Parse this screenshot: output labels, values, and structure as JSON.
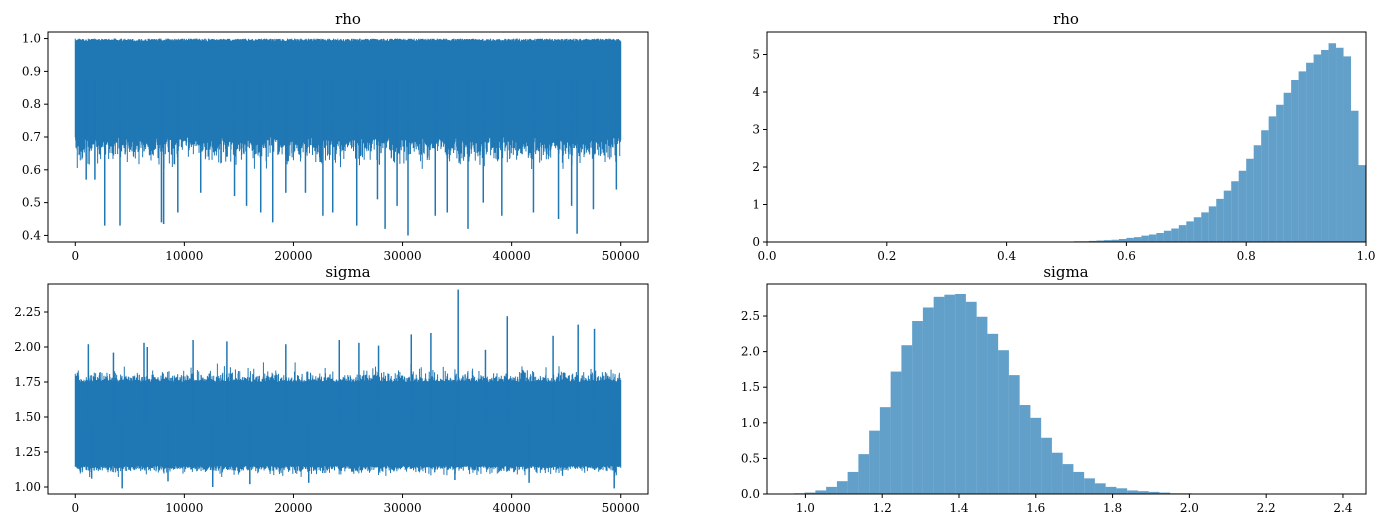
{
  "chart_data": [
    {
      "type": "line",
      "title": "rho",
      "xlabel": "",
      "ylabel": "",
      "xlim": [
        -2500,
        52500
      ],
      "ylim": [
        0.38,
        1.02
      ],
      "xticks": [
        0,
        10000,
        20000,
        30000,
        40000,
        50000
      ],
      "yticks": [
        0.4,
        0.5,
        0.6,
        0.7,
        0.8,
        0.9,
        1.0
      ],
      "ytick_labels": [
        "0.4",
        "0.5",
        "0.6",
        "0.7",
        "0.8",
        "0.9",
        "1.0"
      ],
      "color": "#1f77b4",
      "n_samples": 50000,
      "band": {
        "upper": 1.0,
        "dense_low": 0.7,
        "spike_low": 0.6
      },
      "spikes": [
        {
          "x": 1000,
          "y": 0.57
        },
        {
          "x": 1800,
          "y": 0.57
        },
        {
          "x": 2700,
          "y": 0.43
        },
        {
          "x": 4100,
          "y": 0.43
        },
        {
          "x": 7900,
          "y": 0.44
        },
        {
          "x": 8100,
          "y": 0.435
        },
        {
          "x": 9400,
          "y": 0.47
        },
        {
          "x": 11500,
          "y": 0.53
        },
        {
          "x": 14600,
          "y": 0.52
        },
        {
          "x": 15700,
          "y": 0.49
        },
        {
          "x": 17000,
          "y": 0.47
        },
        {
          "x": 18100,
          "y": 0.44
        },
        {
          "x": 19300,
          "y": 0.53
        },
        {
          "x": 21100,
          "y": 0.53
        },
        {
          "x": 22700,
          "y": 0.46
        },
        {
          "x": 23600,
          "y": 0.47
        },
        {
          "x": 25800,
          "y": 0.43
        },
        {
          "x": 27700,
          "y": 0.51
        },
        {
          "x": 28400,
          "y": 0.42
        },
        {
          "x": 29500,
          "y": 0.49
        },
        {
          "x": 30500,
          "y": 0.4
        },
        {
          "x": 33000,
          "y": 0.46
        },
        {
          "x": 34100,
          "y": 0.47
        },
        {
          "x": 36000,
          "y": 0.42
        },
        {
          "x": 37400,
          "y": 0.5
        },
        {
          "x": 39100,
          "y": 0.46
        },
        {
          "x": 42000,
          "y": 0.47
        },
        {
          "x": 44300,
          "y": 0.45
        },
        {
          "x": 45500,
          "y": 0.49
        },
        {
          "x": 46000,
          "y": 0.405
        },
        {
          "x": 47500,
          "y": 0.48
        },
        {
          "x": 49600,
          "y": 0.54
        }
      ]
    },
    {
      "type": "bar",
      "title": "rho",
      "xlabel": "",
      "ylabel": "",
      "xlim": [
        0.0,
        1.0
      ],
      "ylim": [
        0,
        5.6
      ],
      "xticks": [
        0.0,
        0.2,
        0.4,
        0.6,
        0.8,
        1.0
      ],
      "xtick_labels": [
        "0.0",
        "0.2",
        "0.4",
        "0.6",
        "0.8",
        "1.0"
      ],
      "yticks": [
        0,
        1,
        2,
        3,
        4,
        5
      ],
      "color": "#1f77b4",
      "alpha": 0.7,
      "bin_width": 0.0125,
      "bins_start": [
        0.5,
        0.5125,
        0.525,
        0.5375,
        0.55,
        0.5625,
        0.575,
        0.5875,
        0.6,
        0.6125,
        0.625,
        0.6375,
        0.65,
        0.6625,
        0.675,
        0.6875,
        0.7,
        0.7125,
        0.725,
        0.7375,
        0.75,
        0.7625,
        0.775,
        0.7875,
        0.8,
        0.8125,
        0.825,
        0.8375,
        0.85,
        0.8625,
        0.875,
        0.8875,
        0.9,
        0.9125,
        0.925,
        0.9375,
        0.95,
        0.9625,
        0.975,
        0.9875
      ],
      "values": [
        0.01,
        0.02,
        0.02,
        0.03,
        0.04,
        0.05,
        0.06,
        0.08,
        0.11,
        0.13,
        0.17,
        0.2,
        0.24,
        0.3,
        0.36,
        0.45,
        0.55,
        0.66,
        0.79,
        0.95,
        1.15,
        1.37,
        1.62,
        1.9,
        2.22,
        2.58,
        2.98,
        3.35,
        3.66,
        3.98,
        4.32,
        4.55,
        4.78,
        5.0,
        5.12,
        5.3,
        5.18,
        4.95,
        3.5,
        2.05
      ]
    },
    {
      "type": "line",
      "title": "sigma",
      "xlabel": "",
      "ylabel": "",
      "xlim": [
        -2500,
        52500
      ],
      "ylim": [
        0.95,
        2.45
      ],
      "xticks": [
        0,
        10000,
        20000,
        30000,
        40000,
        50000
      ],
      "yticks": [
        1.0,
        1.25,
        1.5,
        1.75,
        2.0,
        2.25
      ],
      "ytick_labels": [
        "1.00",
        "1.25",
        "1.50",
        "1.75",
        "2.00",
        "2.25"
      ],
      "color": "#1f77b4",
      "n_samples": 50000,
      "band": {
        "dense_low": 1.15,
        "dense_high": 1.75,
        "low_spike": 1.05,
        "high_spike": 1.9
      },
      "spikes": [
        {
          "x": 1200,
          "y": 2.02
        },
        {
          "x": 1500,
          "y": 1.06
        },
        {
          "x": 3500,
          "y": 1.96
        },
        {
          "x": 4300,
          "y": 0.99
        },
        {
          "x": 6300,
          "y": 2.03
        },
        {
          "x": 6600,
          "y": 2.0
        },
        {
          "x": 8500,
          "y": 1.04
        },
        {
          "x": 10800,
          "y": 2.05
        },
        {
          "x": 12600,
          "y": 1.0
        },
        {
          "x": 13900,
          "y": 2.04
        },
        {
          "x": 16000,
          "y": 1.02
        },
        {
          "x": 19300,
          "y": 2.02
        },
        {
          "x": 21400,
          "y": 1.03
        },
        {
          "x": 24200,
          "y": 2.05
        },
        {
          "x": 26000,
          "y": 2.03
        },
        {
          "x": 27800,
          "y": 2.01
        },
        {
          "x": 30800,
          "y": 2.09
        },
        {
          "x": 32600,
          "y": 2.1
        },
        {
          "x": 34800,
          "y": 1.05
        },
        {
          "x": 35100,
          "y": 2.41
        },
        {
          "x": 37600,
          "y": 1.98
        },
        {
          "x": 39600,
          "y": 2.22
        },
        {
          "x": 41600,
          "y": 1.03
        },
        {
          "x": 43800,
          "y": 2.08
        },
        {
          "x": 46100,
          "y": 2.16
        },
        {
          "x": 47600,
          "y": 2.13
        },
        {
          "x": 49400,
          "y": 0.99
        }
      ]
    },
    {
      "type": "bar",
      "title": "sigma",
      "xlabel": "",
      "ylabel": "",
      "xlim": [
        0.9,
        2.46
      ],
      "ylim": [
        0,
        2.95
      ],
      "xticks": [
        1.0,
        1.2,
        1.4,
        1.6,
        1.8,
        2.0,
        2.2,
        2.4
      ],
      "xtick_labels": [
        "1.0",
        "1.2",
        "1.4",
        "1.6",
        "1.8",
        "2.0",
        "2.2",
        "2.4"
      ],
      "yticks": [
        0.0,
        0.5,
        1.0,
        1.5,
        2.0,
        2.5
      ],
      "ytick_labels": [
        "0.0",
        "0.5",
        "1.0",
        "1.5",
        "2.0",
        "2.5"
      ],
      "color": "#1f77b4",
      "alpha": 0.7,
      "bin_width": 0.028,
      "bins_start": [
        0.97,
        0.998,
        1.026,
        1.054,
        1.082,
        1.11,
        1.138,
        1.166,
        1.194,
        1.222,
        1.25,
        1.278,
        1.306,
        1.334,
        1.362,
        1.39,
        1.418,
        1.446,
        1.474,
        1.502,
        1.53,
        1.558,
        1.586,
        1.614,
        1.642,
        1.67,
        1.698,
        1.726,
        1.754,
        1.782,
        1.81,
        1.838,
        1.866,
        1.894,
        1.922,
        1.95,
        1.978,
        2.006,
        2.034
      ],
      "values": [
        0.01,
        0.02,
        0.05,
        0.1,
        0.18,
        0.31,
        0.56,
        0.89,
        1.22,
        1.72,
        2.09,
        2.43,
        2.62,
        2.77,
        2.8,
        2.81,
        2.7,
        2.49,
        2.25,
        2.02,
        1.67,
        1.25,
        1.07,
        0.79,
        0.58,
        0.42,
        0.31,
        0.22,
        0.15,
        0.1,
        0.08,
        0.05,
        0.04,
        0.03,
        0.02,
        0.01,
        0.01,
        0.005,
        0.005
      ]
    }
  ]
}
